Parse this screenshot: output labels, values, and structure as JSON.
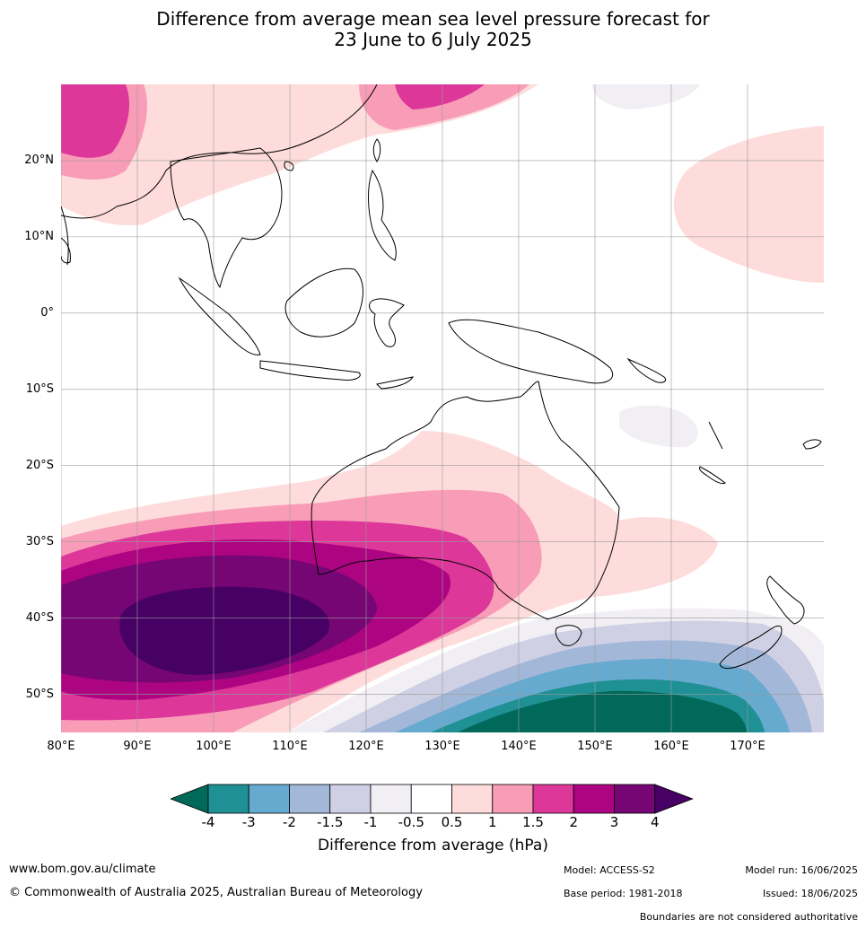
{
  "title": {
    "line1": "Difference from average mean sea level pressure forecast for",
    "line2": "23 June to 6 July 2025"
  },
  "map": {
    "lat_labels": [
      "20°N",
      "10°N",
      "0°",
      "10°S",
      "20°S",
      "30°S",
      "40°S",
      "50°S"
    ],
    "lon_labels": [
      "80°E",
      "90°E",
      "100°E",
      "110°E",
      "120°E",
      "130°E",
      "140°E",
      "150°E",
      "160°E",
      "170°E"
    ],
    "lat_values": [
      20,
      10,
      0,
      -10,
      -20,
      -30,
      -40,
      -50
    ],
    "lon_values": [
      80,
      90,
      100,
      110,
      120,
      130,
      140,
      150,
      160,
      170
    ],
    "extent": {
      "lon": [
        80,
        180
      ],
      "lat": [
        -55,
        30
      ]
    },
    "grid": true
  },
  "colorbar": {
    "ticks": [
      "-4",
      "-3",
      "-2",
      "-1.5",
      "-1",
      "-0.5",
      "0.5",
      "1",
      "1.5",
      "2",
      "3",
      "4"
    ],
    "colors": [
      "#00695a",
      "#1f9094",
      "#66aacf",
      "#a3b8d8",
      "#d0d0e5",
      "#f1eef4",
      "#ffffff",
      "#fddcdb",
      "#f99cb8",
      "#dc3799",
      "#ad0581",
      "#750674",
      "#470064"
    ],
    "label": "Difference from average (hPa)"
  },
  "footer": {
    "url": "www.bom.gov.au/climate",
    "copyright": "© Commonwealth of Australia 2025, Australian Bureau of Meteorology",
    "model": "Model: ACCESS-S2",
    "model_run": "Model run: 16/06/2025",
    "base_period": "Base period: 1981-2018",
    "issued": "Issued: 18/06/2025",
    "disclaimer": "Boundaries are not considered authoritative"
  }
}
